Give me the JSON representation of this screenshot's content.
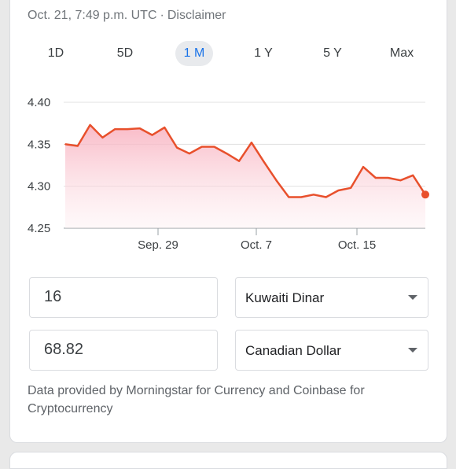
{
  "header": {
    "timestamp": "Oct. 21, 7:49 p.m. UTC",
    "separator": "·",
    "disclaimer": "Disclaimer"
  },
  "tabs": [
    {
      "label": "1D",
      "active": false
    },
    {
      "label": "5D",
      "active": false
    },
    {
      "label": "1 M",
      "active": true
    },
    {
      "label": "1 Y",
      "active": false
    },
    {
      "label": "5 Y",
      "active": false
    },
    {
      "label": "Max",
      "active": false
    }
  ],
  "chart_data": {
    "type": "area",
    "title": "",
    "xlabel": "",
    "ylabel": "",
    "y_ticks": [
      "4.40",
      "4.35",
      "4.30",
      "4.25"
    ],
    "x_ticks": [
      "Sep. 29",
      "Oct. 7",
      "Oct. 15"
    ],
    "ylim": [
      4.25,
      4.4
    ],
    "grid": "horizontal",
    "colors": {
      "line": "#e8502c",
      "fill": "#fbd3dc",
      "marker": "#e8502c"
    },
    "series": [
      {
        "values": [
          4.35,
          4.348,
          4.373,
          4.358,
          4.368,
          4.368,
          4.369,
          4.361,
          4.37,
          4.346,
          4.339,
          4.347,
          4.347,
          4.339,
          4.33,
          4.352,
          4.329,
          4.307,
          4.287,
          4.287,
          4.29,
          4.287,
          4.295,
          4.298,
          4.323,
          4.31,
          4.31,
          4.307,
          4.313,
          4.29
        ]
      }
    ]
  },
  "converter": {
    "amount_from": "16",
    "currency_from": "Kuwaiti Dinar",
    "amount_to": "68.82",
    "currency_to": "Canadian Dollar"
  },
  "footer": {
    "text": "Data provided by Morningstar for Currency and Coinbase for Cryptocurrency"
  }
}
